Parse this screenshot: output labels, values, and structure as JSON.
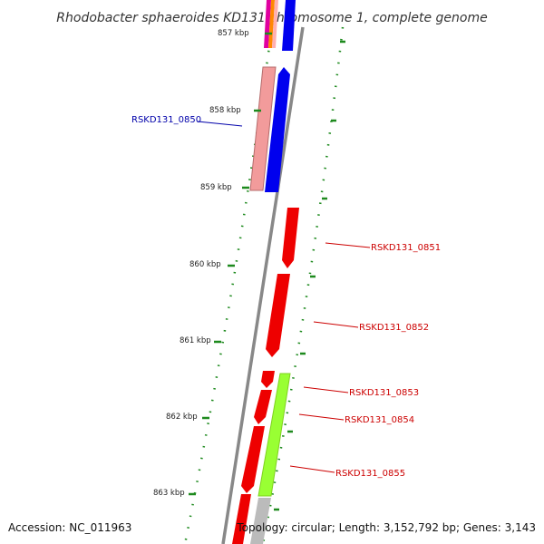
{
  "title": "Rhodobacter sphaeroides KD131 chromosome 1, complete genome",
  "footer": {
    "accession": "Accession: NC_011963",
    "summary": "Topology: circular; Length: 3,152,792 bp; Genes: 3,143"
  },
  "ruler": [
    {
      "label": "857 kbp",
      "kbp": 857
    },
    {
      "label": "858 kbp",
      "kbp": 858
    },
    {
      "label": "859 kbp",
      "kbp": 859
    },
    {
      "label": "860 kbp",
      "kbp": 860
    },
    {
      "label": "861 kbp",
      "kbp": 861
    },
    {
      "label": "862 kbp",
      "kbp": 862
    },
    {
      "label": "863 kbp",
      "kbp": 863
    }
  ],
  "genes": [
    {
      "label": "RSKD131_0850",
      "strand": "minus",
      "color": "#0000ee",
      "label_color": "#0000aa",
      "side": "left"
    },
    {
      "label": "RSKD131_0851",
      "strand": "plus",
      "color": "#ee0000",
      "label_color": "#cc0000",
      "side": "right"
    },
    {
      "label": "RSKD131_0852",
      "strand": "plus",
      "color": "#ee0000",
      "label_color": "#cc0000",
      "side": "right"
    },
    {
      "label": "RSKD131_0853",
      "strand": "plus",
      "color": "#ee0000",
      "label_color": "#cc0000",
      "side": "right"
    },
    {
      "label": "RSKD131_0854",
      "strand": "plus",
      "color": "#ee0000",
      "label_color": "#cc0000",
      "side": "right"
    },
    {
      "label": "RSKD131_0855",
      "strand": "plus",
      "color": "#ee0000",
      "label_color": "#cc0000",
      "side": "right"
    }
  ],
  "colors": {
    "backbone": "#888888",
    "gc_dots": "#1e8a1e",
    "gc_skew_feature": "#99ff33",
    "shaded_feature": "#f29b9b"
  }
}
